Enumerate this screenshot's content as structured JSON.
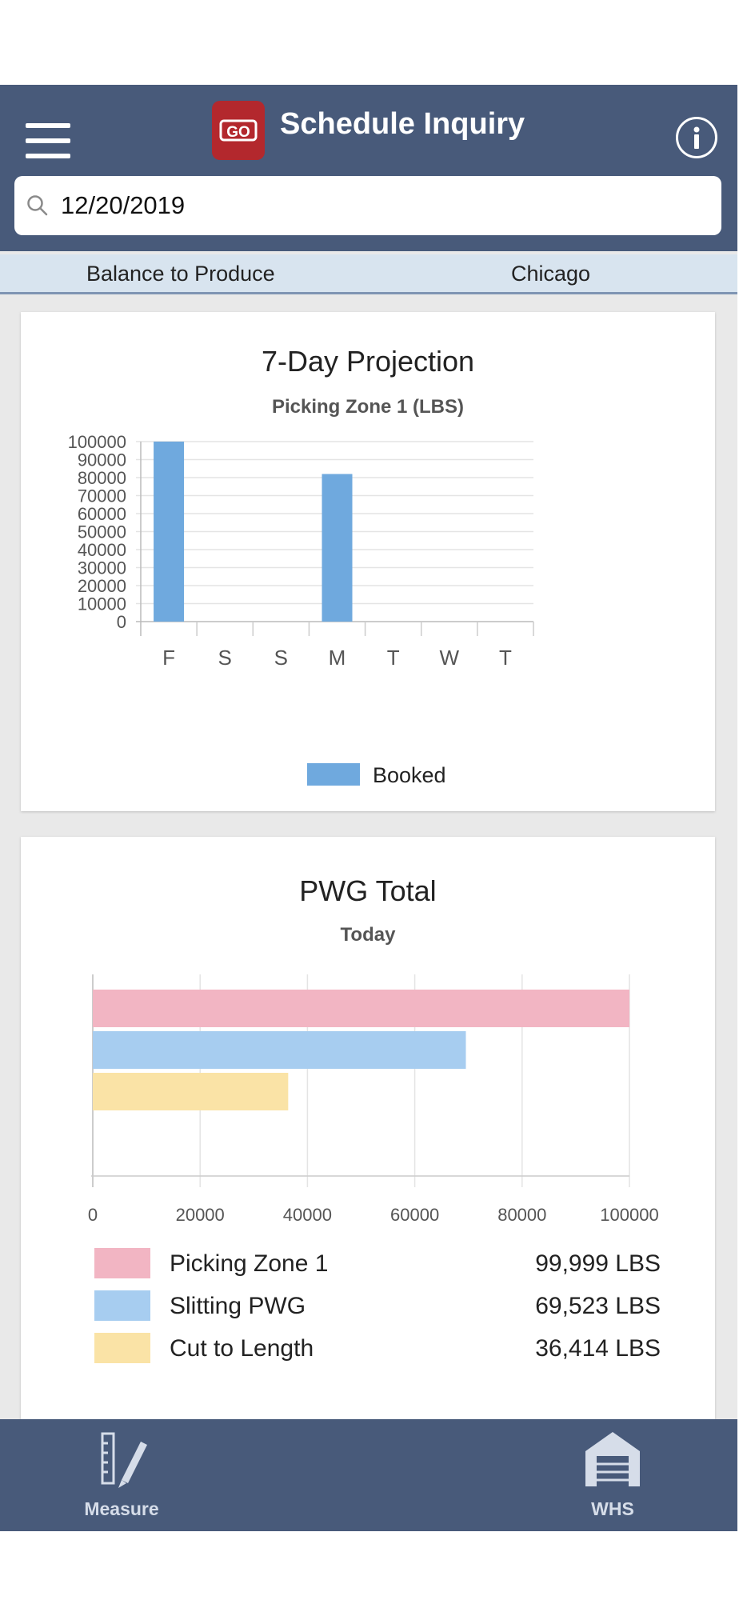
{
  "header": {
    "title": "Schedule Inquiry",
    "logo_text": "GO"
  },
  "search": {
    "value": "12/20/2019"
  },
  "info_bar": {
    "left": "Balance to Produce",
    "right": "Chicago"
  },
  "colors": {
    "topbar": "#485a7a",
    "logo": "#b3282d",
    "booked": "#6fa9de",
    "pink": "#f2b5c3",
    "blue": "#a7cdf0",
    "yellow": "#fae3a6"
  },
  "chart_data": [
    {
      "type": "bar",
      "title": "7-Day Projection",
      "subtitle": "Picking Zone 1 (LBS)",
      "categories": [
        "F",
        "S",
        "S",
        "M",
        "T",
        "W",
        "T"
      ],
      "series": [
        {
          "name": "Booked",
          "values": [
            100000,
            0,
            0,
            82000,
            0,
            0,
            0
          ]
        }
      ],
      "ylim": [
        0,
        100000
      ],
      "yticks": [
        "100000",
        "90000",
        "80000",
        "70000",
        "60000",
        "50000",
        "40000",
        "30000",
        "20000",
        "10000",
        "0"
      ],
      "grid": true,
      "legend": "bottom"
    },
    {
      "type": "bar",
      "orientation": "horizontal",
      "title": "PWG Total",
      "subtitle": "Today",
      "categories": [
        "Picking Zone 1",
        "Slitting PWG",
        "Cut to Length"
      ],
      "values": [
        99999,
        69523,
        36414
      ],
      "value_labels": [
        "99,999 LBS",
        "69,523 LBS",
        "36,414 LBS"
      ],
      "xlim": [
        0,
        100000
      ],
      "xticks": [
        "0",
        "20000",
        "40000",
        "60000",
        "80000",
        "100000"
      ],
      "grid": true,
      "legend": "bottom"
    }
  ],
  "bottom_nav": [
    {
      "label": "Measure",
      "icon": "measure-icon"
    },
    {
      "label": "WHS",
      "icon": "warehouse-icon"
    }
  ]
}
